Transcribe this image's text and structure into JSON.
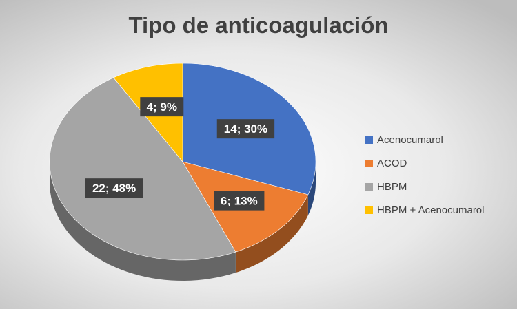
{
  "chart_data": {
    "type": "pie",
    "title": "Tipo de anticoagulación",
    "categories": [
      "Acenocumarol",
      "ACOD",
      "HBPM",
      "HBPM + Acenocumarol"
    ],
    "values": [
      14,
      6,
      22,
      4
    ],
    "percents": [
      30,
      13,
      48,
      9
    ],
    "data_labels": [
      "14; 30%",
      "6; 13%",
      "22; 48%",
      "4; 9%"
    ],
    "colors": [
      "#4472C4",
      "#ED7D31",
      "#A5A5A5",
      "#FFC000"
    ],
    "legend_position": "right",
    "style": "3d"
  }
}
